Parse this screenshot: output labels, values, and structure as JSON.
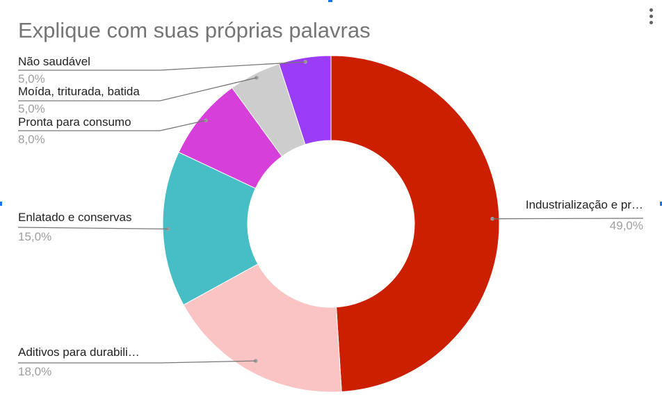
{
  "chart_data": {
    "type": "pie",
    "donut": true,
    "title": "Explique com suas próprias palavras",
    "slices": [
      {
        "label": "Industrialização e pr…",
        "value": 49.0,
        "value_label": "49,0%",
        "color": "#cc1f00"
      },
      {
        "label": "Aditivos para durabili…",
        "value": 18.0,
        "value_label": "18,0%",
        "color": "#fbc4c4"
      },
      {
        "label": "Enlatado e conservas",
        "value": 15.0,
        "value_label": "15,0%",
        "color": "#47bec6"
      },
      {
        "label": "Pronta para consumo",
        "value": 8.0,
        "value_label": "8,0%",
        "color": "#d63fd9"
      },
      {
        "label": "Moída, triturada, batida",
        "value": 5.0,
        "value_label": "5,0%",
        "color": "#cdcdcd"
      },
      {
        "label": "Não saudável",
        "value": 5.0,
        "value_label": "5,0%",
        "color": "#9b3cf8"
      }
    ],
    "legend": "none"
  },
  "colors": {
    "title": "#757575",
    "label": "#222222",
    "value": "#9e9e9e",
    "leader": "#777777"
  },
  "icons": {
    "menu": "more-vertical-icon"
  }
}
